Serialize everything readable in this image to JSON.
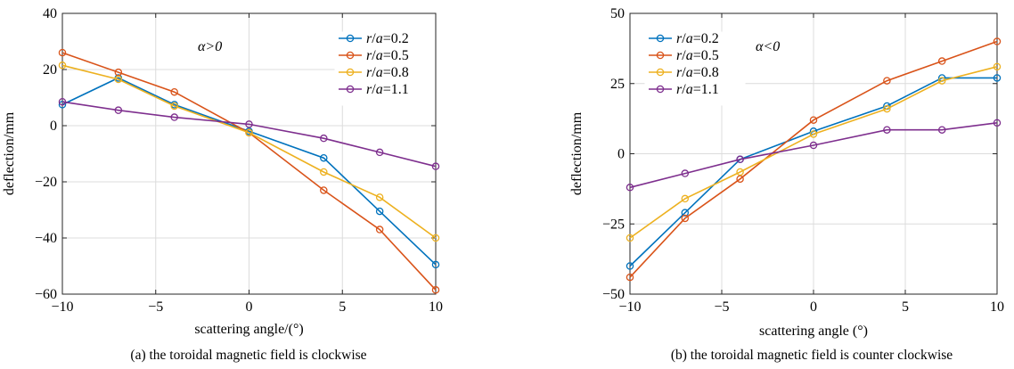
{
  "chart_data": [
    {
      "type": "line",
      "xlabel": "scattering angle/(°)",
      "ylabel": "deflection/mm",
      "caption": "(a) the toroidal magnetic field is clockwise",
      "annotation": "α>0",
      "xlim": [
        -10,
        10
      ],
      "ylim": [
        -60,
        40
      ],
      "xticks": [
        -10,
        -5,
        0,
        5,
        10
      ],
      "yticks": [
        -60,
        -40,
        -20,
        0,
        20,
        40
      ],
      "xtick_labels": [
        "−10",
        "−5",
        "0",
        "5",
        "10"
      ],
      "ytick_labels": [
        "−60",
        "−40",
        "−20",
        "0",
        "20",
        "40"
      ],
      "grid": true,
      "legend_position": "top-right",
      "x": [
        -10,
        -7,
        -4,
        0,
        4,
        7,
        10
      ],
      "series": [
        {
          "name": "r/a=0.2",
          "var1": "r",
          "var2": "a",
          "value": "0.2",
          "color": "#0072BD",
          "values": [
            7.5,
            17,
            7.5,
            -2,
            -11.5,
            -30.5,
            -49.5
          ]
        },
        {
          "name": "r/a=0.5",
          "var1": "r",
          "var2": "a",
          "value": "0.5",
          "color": "#D95319",
          "values": [
            26,
            19,
            12,
            -2.5,
            -23,
            -37,
            -58.5
          ]
        },
        {
          "name": "r/a=0.8",
          "var1": "r",
          "var2": "a",
          "value": "0.8",
          "color": "#EDB120",
          "values": [
            21.5,
            16.5,
            7,
            -2.5,
            -16.5,
            -25.5,
            -40
          ]
        },
        {
          "name": "r/a=1.1",
          "var1": "r",
          "var2": "a",
          "value": "1.1",
          "color": "#7E2F8E",
          "values": [
            8.5,
            5.5,
            3,
            0.5,
            -4.5,
            -9.5,
            -14.5
          ]
        }
      ]
    },
    {
      "type": "line",
      "xlabel": "scattering angle (°)",
      "ylabel": "deflection/mm",
      "caption": "(b) the toroidal magnetic field is counter clockwise",
      "annotation": "α<0",
      "xlim": [
        -10,
        10
      ],
      "ylim": [
        -50,
        50
      ],
      "xticks": [
        -10,
        -5,
        0,
        5,
        10
      ],
      "yticks": [
        -50,
        -25,
        0,
        25,
        50
      ],
      "xtick_labels": [
        "−10",
        "−5",
        "0",
        "5",
        "10"
      ],
      "ytick_labels": [
        "−50",
        "−25",
        "0",
        "25",
        "50"
      ],
      "grid": true,
      "legend_position": "top-left",
      "x": [
        -10,
        -7,
        -4,
        0,
        4,
        7,
        10
      ],
      "series": [
        {
          "name": "r/a=0.2",
          "var1": "r",
          "var2": "a",
          "value": "0.2",
          "color": "#0072BD",
          "values": [
            -40,
            -21,
            -2,
            8,
            17,
            27,
            27
          ]
        },
        {
          "name": "r/a=0.5",
          "var1": "r",
          "var2": "a",
          "value": "0.5",
          "color": "#D95319",
          "values": [
            -44,
            -23,
            -9,
            12,
            26,
            33,
            40
          ]
        },
        {
          "name": "r/a=0.8",
          "var1": "r",
          "var2": "a",
          "value": "0.8",
          "color": "#EDB120",
          "values": [
            -30,
            -16,
            -6.5,
            7,
            16,
            26,
            31
          ]
        },
        {
          "name": "r/a=1.1",
          "var1": "r",
          "var2": "a",
          "value": "1.1",
          "color": "#7E2F8E",
          "values": [
            -12,
            -7,
            -2,
            3,
            8.5,
            8.5,
            11
          ]
        }
      ]
    }
  ]
}
